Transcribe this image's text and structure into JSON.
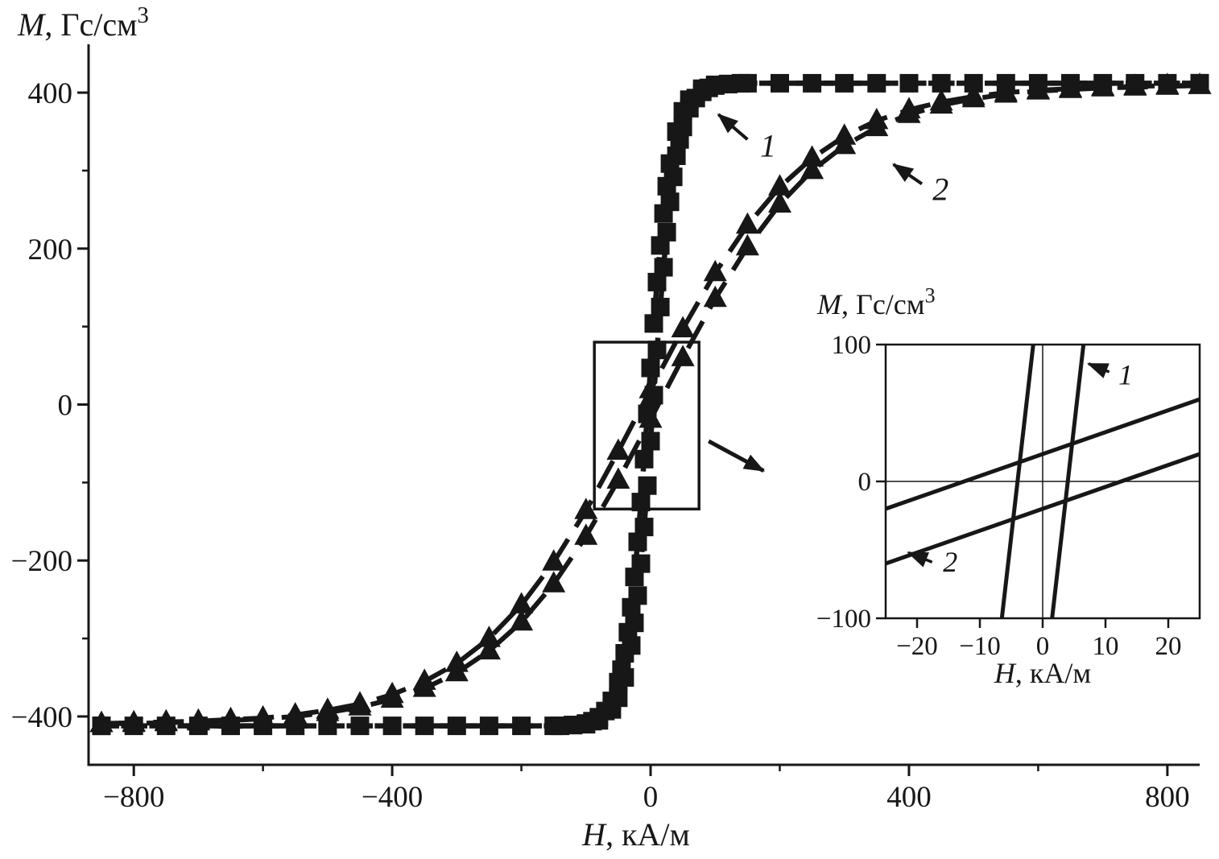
{
  "page": {
    "bg": "#ffffff",
    "ink": "#171717"
  },
  "chart_data": {
    "type": "line",
    "title": "",
    "description": "Magnetization hysteresis loops M(H): sample 1 (squares, narrow steep loop) and sample 2 (triangles, gradual S-curve), with inset zoom near the origin",
    "main": {
      "xlabel": "H, кА/м",
      "ylabel": "M, Гс/см³",
      "xlabel_parts": {
        "var": "H",
        "unit": ", кА/м",
        "sup": ""
      },
      "ylabel_parts": {
        "var": "M",
        "unit": ", Гс/см",
        "sup": "3"
      },
      "xlim": [
        -870,
        850
      ],
      "ylim": [
        -462,
        462
      ],
      "xticks": [
        -800,
        -400,
        0,
        400,
        800
      ],
      "xminor": [
        -600,
        -200,
        200,
        600
      ],
      "yticks": [
        -400,
        -200,
        0,
        200,
        400
      ],
      "yminor": [
        -300,
        -100,
        100,
        300
      ],
      "grid": false,
      "legend": "none",
      "series": [
        {
          "name": "1",
          "marker": "square",
          "dash": "22 13",
          "branches": {
            "ascending": [
              [
                -850,
                -412
              ],
              [
                -750,
                -412
              ],
              [
                -650,
                -412
              ],
              [
                -550,
                -412
              ],
              [
                -450,
                -412
              ],
              [
                -350,
                -412
              ],
              [
                -250,
                -412
              ],
              [
                -150,
                -412
              ],
              [
                -120,
                -411
              ],
              [
                -100,
                -410
              ],
              [
                -80,
                -405
              ],
              [
                -60,
                -391
              ],
              [
                -50,
                -376
              ],
              [
                -40,
                -350
              ],
              [
                -30,
                -309
              ],
              [
                -25,
                -280
              ],
              [
                -20,
                -245
              ],
              [
                -15,
                -204
              ],
              [
                -10,
                -157
              ],
              [
                -5,
                -104
              ],
              [
                0,
                -47
              ],
              [
                5,
                12
              ],
              [
                10,
                70
              ],
              [
                15,
                125
              ],
              [
                20,
                176
              ],
              [
                25,
                221
              ],
              [
                30,
                260
              ],
              [
                35,
                292
              ],
              [
                40,
                319
              ],
              [
                45,
                340
              ],
              [
                50,
                356
              ],
              [
                60,
                380
              ],
              [
                70,
                393
              ],
              [
                80,
                401
              ],
              [
                90,
                406
              ],
              [
                100,
                409
              ],
              [
                120,
                411
              ],
              [
                140,
                412
              ],
              [
                200,
                412
              ],
              [
                300,
                412
              ],
              [
                400,
                412
              ],
              [
                500,
                412
              ],
              [
                600,
                412
              ],
              [
                700,
                412
              ],
              [
                800,
                412
              ],
              [
                850,
                412
              ]
            ],
            "descending": [
              [
                850,
                412
              ],
              [
                750,
                412
              ],
              [
                650,
                412
              ],
              [
                550,
                412
              ],
              [
                450,
                412
              ],
              [
                350,
                412
              ],
              [
                250,
                412
              ],
              [
                150,
                412
              ],
              [
                120,
                411
              ],
              [
                100,
                410
              ],
              [
                80,
                405
              ],
              [
                60,
                391
              ],
              [
                50,
                376
              ],
              [
                40,
                350
              ],
              [
                30,
                309
              ],
              [
                25,
                280
              ],
              [
                20,
                245
              ],
              [
                15,
                204
              ],
              [
                10,
                157
              ],
              [
                5,
                104
              ],
              [
                0,
                47
              ],
              [
                -5,
                -12
              ],
              [
                -10,
                -70
              ],
              [
                -15,
                -125
              ],
              [
                -20,
                -176
              ],
              [
                -25,
                -221
              ],
              [
                -30,
                -260
              ],
              [
                -35,
                -292
              ],
              [
                -40,
                -319
              ],
              [
                -45,
                -340
              ],
              [
                -50,
                -356
              ],
              [
                -60,
                -380
              ],
              [
                -70,
                -393
              ],
              [
                -80,
                -401
              ],
              [
                -90,
                -406
              ],
              [
                -100,
                -409
              ],
              [
                -120,
                -411
              ],
              [
                -140,
                -412
              ],
              [
                -200,
                -412
              ],
              [
                -300,
                -412
              ],
              [
                -400,
                -412
              ],
              [
                -500,
                -412
              ],
              [
                -600,
                -412
              ],
              [
                -700,
                -412
              ],
              [
                -800,
                -412
              ],
              [
                -850,
                -412
              ]
            ]
          }
        },
        {
          "name": "2",
          "marker": "triangle",
          "dash": "38 18",
          "branches": {
            "ascending": [
              [
                -850,
                -409
              ],
              [
                -800,
                -409
              ],
              [
                -750,
                -408
              ],
              [
                -700,
                -407
              ],
              [
                -650,
                -405
              ],
              [
                -600,
                -403
              ],
              [
                -550,
                -400
              ],
              [
                -500,
                -395
              ],
              [
                -450,
                -388
              ],
              [
                -400,
                -378
              ],
              [
                -350,
                -364
              ],
              [
                -300,
                -344
              ],
              [
                -250,
                -316
              ],
              [
                -200,
                -279
              ],
              [
                -150,
                -230
              ],
              [
                -100,
                -169
              ],
              [
                -50,
                -97
              ],
              [
                0,
                -19
              ],
              [
                50,
                60
              ],
              [
                100,
                136
              ],
              [
                150,
                202
              ],
              [
                200,
                257
              ],
              [
                250,
                300
              ],
              [
                300,
                332
              ],
              [
                350,
                355
              ],
              [
                400,
                372
              ],
              [
                450,
                384
              ],
              [
                500,
                392
              ],
              [
                550,
                398
              ],
              [
                600,
                402
              ],
              [
                650,
                404
              ],
              [
                700,
                406
              ],
              [
                750,
                407
              ],
              [
                800,
                408
              ],
              [
                850,
                409
              ]
            ],
            "descending": [
              [
                850,
                409
              ],
              [
                800,
                409
              ],
              [
                750,
                408
              ],
              [
                700,
                407
              ],
              [
                650,
                405
              ],
              [
                600,
                403
              ],
              [
                550,
                400
              ],
              [
                500,
                395
              ],
              [
                450,
                388
              ],
              [
                400,
                378
              ],
              [
                350,
                364
              ],
              [
                300,
                344
              ],
              [
                250,
                316
              ],
              [
                200,
                279
              ],
              [
                150,
                230
              ],
              [
                100,
                169
              ],
              [
                50,
                97
              ],
              [
                0,
                19
              ],
              [
                -50,
                -60
              ],
              [
                -100,
                -136
              ],
              [
                -150,
                -202
              ],
              [
                -200,
                -257
              ],
              [
                -250,
                -300
              ],
              [
                -300,
                -332
              ],
              [
                -350,
                -355
              ],
              [
                -400,
                -372
              ],
              [
                -450,
                -384
              ],
              [
                -500,
                -392
              ],
              [
                -550,
                -398
              ],
              [
                -600,
                -402
              ],
              [
                -650,
                -404
              ],
              [
                -700,
                -406
              ],
              [
                -750,
                -407
              ],
              [
                -800,
                -408
              ],
              [
                -850,
                -409
              ]
            ]
          }
        }
      ],
      "zoom_rect": {
        "x": [
          -87,
          75
        ],
        "y": [
          -134,
          80
        ]
      },
      "rect_arrow": [
        90,
        -47,
        175,
        -85
      ],
      "annotations": [
        {
          "text": "1",
          "label_xy": [
            182,
            318
          ],
          "arrow": [
            150,
            340,
            105,
            372
          ]
        },
        {
          "text": "2",
          "label_xy": [
            449,
            262
          ],
          "arrow": [
            420,
            283,
            376,
            308
          ]
        }
      ]
    },
    "inset": {
      "xlabel": "H, кА/м",
      "ylabel": "M, Гс/см³",
      "xlabel_parts": {
        "var": "H",
        "unit": ", кА/м",
        "sup": ""
      },
      "ylabel_parts": {
        "var": "M",
        "unit": ", Гс/см",
        "sup": "3"
      },
      "xlim": [
        -25,
        25
      ],
      "ylim": [
        -100,
        100
      ],
      "xticks": [
        -20,
        -10,
        0,
        10,
        20
      ],
      "yticks": [
        -100,
        0,
        100
      ],
      "grid": false,
      "lines": [
        {
          "series": "1",
          "points": [
            [
              -6.5,
              -100
            ],
            [
              -1.5,
              100
            ]
          ]
        },
        {
          "series": "1",
          "points": [
            [
              1.5,
              -100
            ],
            [
              6.5,
              100
            ]
          ]
        },
        {
          "series": "2",
          "points": [
            [
              -25,
              -60
            ],
            [
              25,
              20
            ]
          ]
        },
        {
          "series": "2",
          "points": [
            [
              -25,
              -20
            ],
            [
              25,
              60
            ]
          ]
        }
      ],
      "annotations": [
        {
          "text": "1",
          "label_xy": [
            13.2,
            71
          ],
          "arrow": [
            10.6,
            80,
            7.3,
            86
          ]
        },
        {
          "text": "2",
          "label_xy": [
            -14.7,
            -66
          ],
          "arrow": [
            -17.6,
            -59,
            -21.4,
            -52
          ]
        }
      ]
    }
  }
}
